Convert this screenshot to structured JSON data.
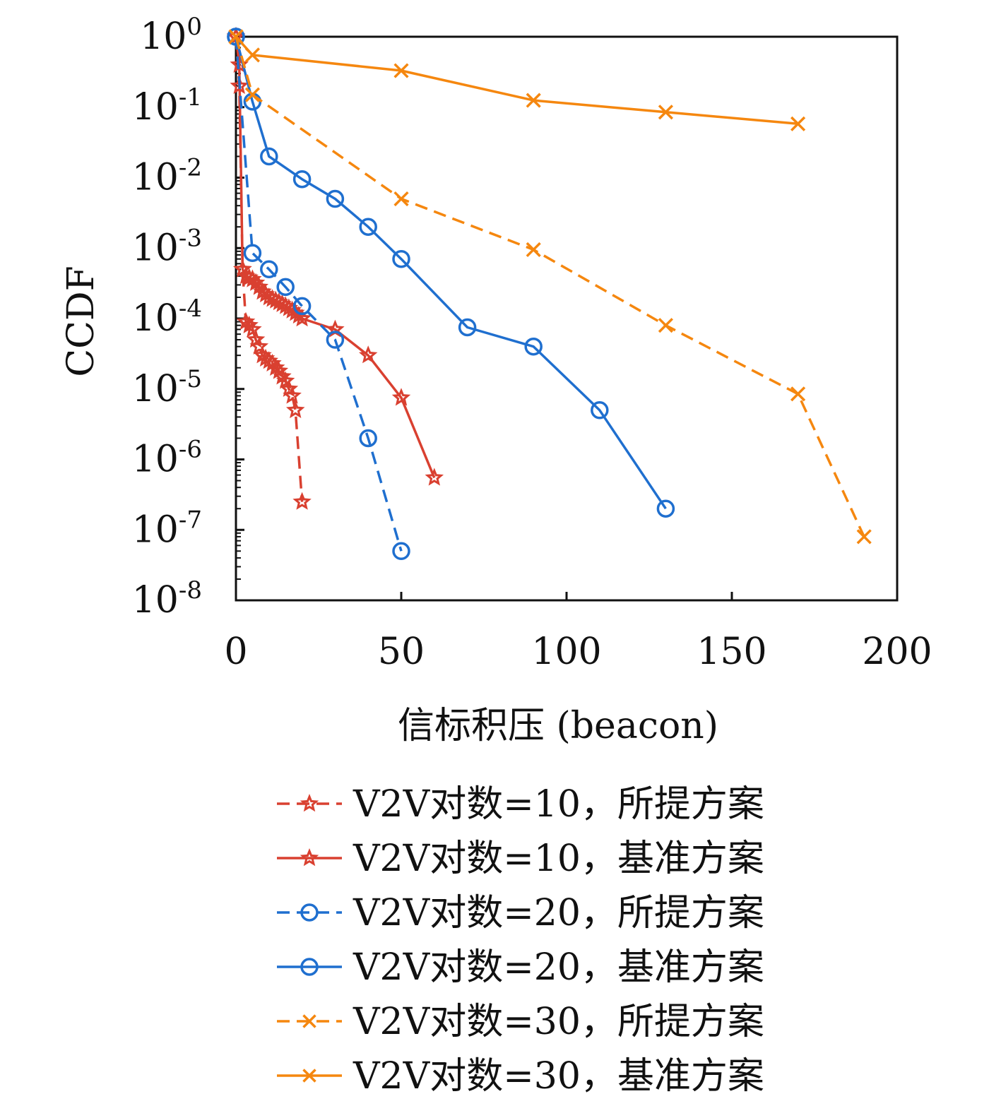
{
  "chart_data": {
    "type": "line",
    "xlabel": "信标积压 (beacon)",
    "ylabel": "CCDF",
    "xlim": [
      0,
      200
    ],
    "ylim": [
      1e-08,
      1
    ],
    "yscale": "log",
    "xticks": [
      0,
      50,
      100,
      150,
      200
    ],
    "xtick_labels": [
      "0",
      "50",
      "100",
      "150",
      "200"
    ],
    "yticks": [
      0,
      -1,
      -2,
      -3,
      -4,
      -5,
      -6,
      -7,
      -8
    ],
    "ytick_labels": [
      "10^0",
      "10^-1",
      "10^-2",
      "10^-3",
      "10^-4",
      "10^-5",
      "10^-6",
      "10^-7",
      "10^-8"
    ],
    "grid": false,
    "legend_position": "below",
    "series": [
      {
        "name": "V2V对数=10，所提方案",
        "color": "#d94030",
        "dash": "dashed",
        "marker": "star",
        "x": [
          0,
          1,
          2,
          3,
          4,
          5,
          6,
          7,
          8,
          9,
          10,
          11,
          12,
          13,
          14,
          15,
          16,
          17,
          18,
          20
        ],
        "y": [
          1,
          0.2,
          0.0005,
          9e-05,
          8e-05,
          7e-05,
          5e-05,
          4e-05,
          3e-05,
          2.7e-05,
          2.5e-05,
          2.3e-05,
          2e-05,
          1.8e-05,
          1.5e-05,
          1.3e-05,
          1e-05,
          8e-06,
          5e-06,
          2.5e-07
        ]
      },
      {
        "name": "V2V对数=10，基准方案",
        "color": "#d94030",
        "dash": "solid",
        "marker": "star",
        "x": [
          0,
          1,
          2,
          3,
          4,
          5,
          6,
          7,
          8,
          9,
          10,
          11,
          12,
          13,
          14,
          15,
          16,
          17,
          18,
          19,
          20,
          30,
          40,
          50,
          60
        ],
        "y": [
          1,
          0.4,
          0.0005,
          0.0004,
          0.00038,
          0.00036,
          0.00032,
          0.00028,
          0.00024,
          0.00022,
          0.0002,
          0.00019,
          0.00018,
          0.00017,
          0.00016,
          0.00015,
          0.00014,
          0.00013,
          0.00012,
          0.00011,
          0.0001,
          7e-05,
          3e-05,
          7.5e-06,
          5.5e-07
        ]
      },
      {
        "name": "V2V对数=20，所提方案",
        "color": "#1f6fcf",
        "dash": "dashed",
        "marker": "circle",
        "x": [
          0,
          5,
          10,
          15,
          20,
          30,
          40,
          50
        ],
        "y": [
          1,
          0.00085,
          0.0005,
          0.00028,
          0.00015,
          5e-05,
          2e-06,
          5e-08
        ]
      },
      {
        "name": "V2V对数=20，基准方案",
        "color": "#1f6fcf",
        "dash": "solid",
        "marker": "circle",
        "x": [
          0,
          5,
          10,
          20,
          30,
          40,
          50,
          70,
          90,
          110,
          130
        ],
        "y": [
          1,
          0.12,
          0.02,
          0.0095,
          0.005,
          0.002,
          0.0007,
          7.5e-05,
          4e-05,
          5e-06,
          2e-07
        ]
      },
      {
        "name": "V2V对数=30，所提方案",
        "color": "#f5870f",
        "dash": "dashed",
        "marker": "x",
        "x": [
          0,
          5,
          50,
          90,
          130,
          170,
          190
        ],
        "y": [
          1,
          0.15,
          0.005,
          0.00095,
          8e-05,
          8.5e-06,
          8e-08
        ]
      },
      {
        "name": "V2V对数=30，基准方案",
        "color": "#f5870f",
        "dash": "solid",
        "marker": "x",
        "x": [
          0,
          5,
          50,
          90,
          130,
          170
        ],
        "y": [
          1,
          0.55,
          0.33,
          0.125,
          0.085,
          0.058
        ]
      }
    ]
  }
}
